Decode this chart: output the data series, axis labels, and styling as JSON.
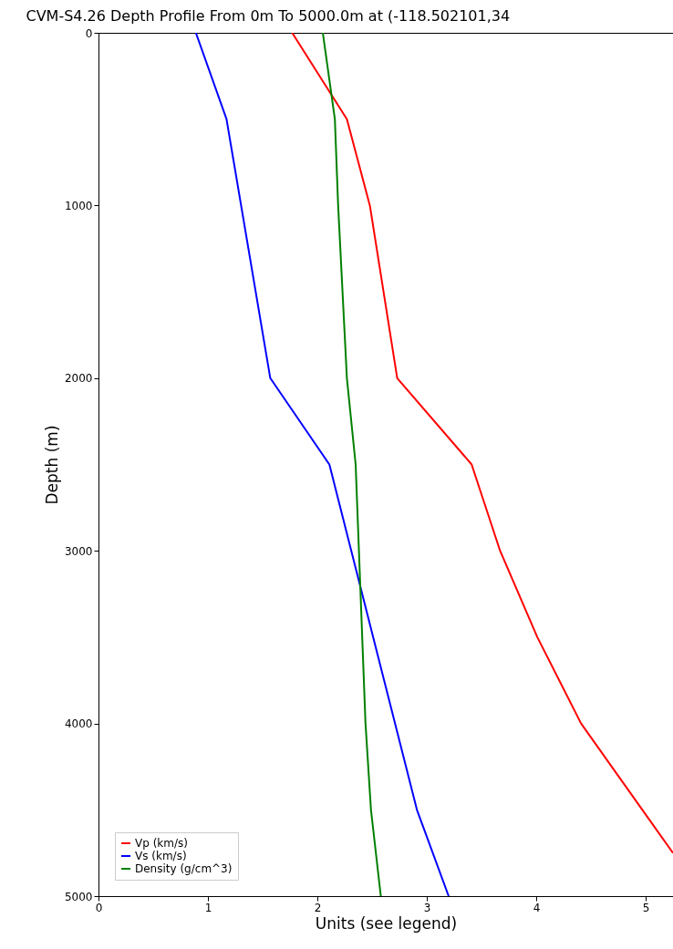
{
  "chart_data": {
    "type": "line",
    "title": "CVM-S4.26 Depth Profile From 0m To 5000.0m at (-118.502101,34",
    "xlabel": "Units (see legend)",
    "ylabel": "Depth (m)",
    "xlim": [
      0,
      5.25
    ],
    "xticks": [
      0,
      1,
      2,
      3,
      4,
      5
    ],
    "ylim": [
      5000,
      0
    ],
    "yticks": [
      0,
      1000,
      2000,
      3000,
      4000,
      5000
    ],
    "grid": false,
    "legend": "bottom left",
    "series": [
      {
        "name": "Vp (km/s)",
        "color": "#ff0000",
        "x": [
          1.77,
          2.27,
          2.48,
          2.73,
          3.41,
          3.67,
          4.01,
          4.41,
          4.97,
          5.25
        ],
        "values": [
          0,
          500,
          1000,
          2000,
          2500,
          3000,
          3500,
          4000,
          4500,
          4750
        ]
      },
      {
        "name": "Vs (km/s)",
        "color": "#0000ff",
        "x": [
          0.89,
          1.17,
          1.57,
          2.11,
          2.91,
          3.2
        ],
        "values": [
          0,
          500,
          2000,
          2500,
          4500,
          5000
        ]
      },
      {
        "name": "Density (g/cm^3)",
        "color": "#008000",
        "x": [
          2.05,
          2.16,
          2.19,
          2.27,
          2.35,
          2.38,
          2.44,
          2.49,
          2.58
        ],
        "values": [
          0,
          500,
          1000,
          2000,
          2500,
          3000,
          4000,
          4500,
          5000
        ]
      }
    ]
  }
}
